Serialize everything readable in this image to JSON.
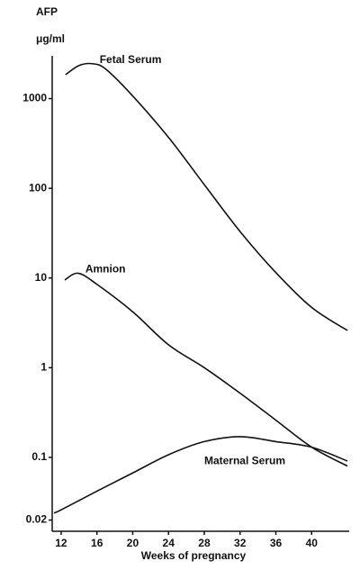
{
  "chart_data": {
    "type": "line",
    "ylabel": "AFP",
    "yunit": "μg/ml",
    "xlabel": "Weeks of pregnancy",
    "x": [
      12.5,
      14,
      15.5,
      17,
      20,
      24,
      28,
      32,
      36,
      40,
      44
    ],
    "series": [
      {
        "name": "Fetal Serum",
        "color": "#111111",
        "x": [
          12.5,
          14,
          15.5,
          17,
          20,
          24,
          28,
          32,
          36,
          40,
          44
        ],
        "values": [
          1850,
          2340,
          2450,
          2130,
          1070,
          370,
          110,
          33,
          11.5,
          4.7,
          2.6
        ]
      },
      {
        "name": "Amnion",
        "color": "#111111",
        "x": [
          12.4,
          13.9,
          16,
          20,
          24,
          28,
          32,
          36,
          40,
          44
        ],
        "values": [
          9.5,
          11.3,
          8.5,
          4.2,
          1.8,
          1.0,
          0.52,
          0.26,
          0.13,
          0.08
        ]
      },
      {
        "name": "Maternal Serum",
        "color": "#111111",
        "x": [
          11.2,
          12,
          16,
          20,
          24,
          28,
          32,
          36,
          40,
          44
        ],
        "values": [
          0.024,
          0.026,
          0.042,
          0.067,
          0.107,
          0.15,
          0.17,
          0.15,
          0.13,
          0.091
        ]
      }
    ],
    "xlim": [
      11,
      44.2
    ],
    "xticks": [
      12,
      16,
      20,
      24,
      28,
      32,
      36,
      40
    ],
    "ylim": [
      0.015,
      3000
    ],
    "yticks": [
      0.02,
      0.1,
      1,
      10,
      100,
      1000
    ],
    "ylog": true
  }
}
